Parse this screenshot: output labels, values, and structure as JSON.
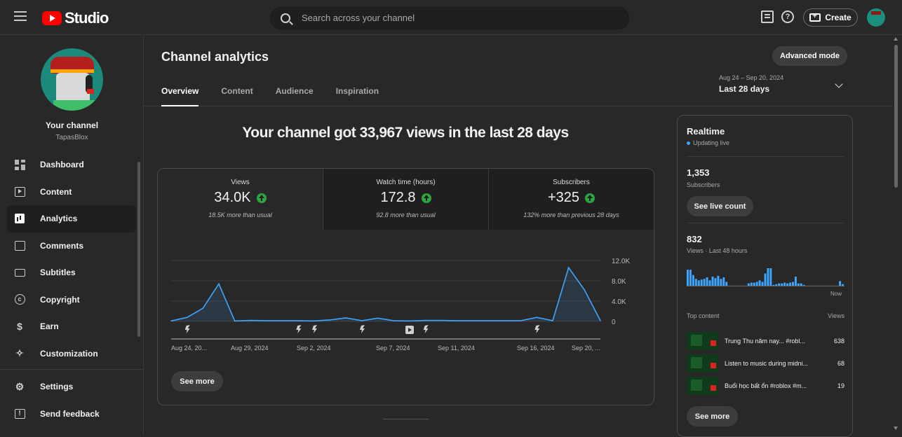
{
  "topbar": {
    "logo_text": "Studio",
    "search_placeholder": "Search across your channel",
    "create_label": "Create",
    "help_symbol": "?"
  },
  "sidebar": {
    "channel_title": "Your channel",
    "channel_handle": "TapasBlox",
    "items": [
      {
        "label": "Dashboard",
        "icon": "dashboard-icon"
      },
      {
        "label": "Content",
        "icon": "content-icon"
      },
      {
        "label": "Analytics",
        "icon": "analytics-icon",
        "active": true
      },
      {
        "label": "Comments",
        "icon": "comments-icon"
      },
      {
        "label": "Subtitles",
        "icon": "subtitles-icon"
      },
      {
        "label": "Copyright",
        "icon": "copyright-icon"
      },
      {
        "label": "Earn",
        "icon": "earn-icon"
      },
      {
        "label": "Customization",
        "icon": "customization-icon"
      }
    ],
    "bottom_items": [
      {
        "label": "Settings",
        "icon": "settings-icon"
      },
      {
        "label": "Send feedback",
        "icon": "feedback-icon"
      }
    ]
  },
  "header": {
    "title": "Channel analytics",
    "advanced_mode": "Advanced mode",
    "tabs": [
      "Overview",
      "Content",
      "Audience",
      "Inspiration"
    ],
    "date_range": "Aug 24 – Sep 20, 2024",
    "date_label": "Last 28 days"
  },
  "overview": {
    "headline": "Your channel got 33,967 views in the last 28 days",
    "metrics": [
      {
        "label": "Views",
        "value": "34.0K",
        "sub": "18.5K more than usual"
      },
      {
        "label": "Watch time (hours)",
        "value": "172.8",
        "sub": "92.8 more than usual"
      },
      {
        "label": "Subscribers",
        "value": "+325",
        "sub": "132% more than previous 28 days"
      }
    ],
    "see_more": "See more"
  },
  "chart_data": {
    "type": "area",
    "x_tick_labels": [
      "Aug 24, 20...",
      "Aug 29, 2024",
      "Sep 2, 2024",
      "Sep 7, 2024",
      "Sep 11, 2024",
      "Sep 16, 2024",
      "Sep 20, ..."
    ],
    "y_tick_labels": [
      "12.0K",
      "8.0K",
      "4.0K",
      "0"
    ],
    "ylim": [
      0,
      12000
    ],
    "values": [
      100,
      800,
      2600,
      7400,
      100,
      200,
      150,
      150,
      150,
      100,
      300,
      700,
      150,
      650,
      150,
      100,
      200,
      200,
      150,
      150,
      150,
      150,
      150,
      800,
      150,
      10600,
      6200,
      150
    ],
    "color": "#3ea6ff",
    "upload_markers": [
      {
        "index": 1,
        "kind": "short"
      },
      {
        "index": 8,
        "kind": "short"
      },
      {
        "index": 9,
        "kind": "short"
      },
      {
        "index": 12,
        "kind": "short"
      },
      {
        "index": 15,
        "kind": "video"
      },
      {
        "index": 16,
        "kind": "short"
      },
      {
        "index": 23,
        "kind": "short"
      }
    ]
  },
  "realtime": {
    "title": "Realtime",
    "status": "Updating live",
    "subscribers": "1,353",
    "subscribers_label": "Subscribers",
    "see_live_count": "See live count",
    "views": "832",
    "views_label": "Views · Last 48 hours",
    "now_label": "Now",
    "bars_color": "#3ea6ff",
    "bars": [
      22,
      22,
      15,
      10,
      8,
      9,
      10,
      12,
      8,
      13,
      11,
      14,
      10,
      12,
      6,
      1,
      1,
      1,
      1,
      1,
      1,
      1,
      4,
      5,
      5,
      6,
      8,
      6,
      17,
      24,
      24,
      2,
      3,
      4,
      4,
      5,
      4,
      5,
      6,
      13,
      4,
      4,
      2,
      1,
      1,
      1,
      1,
      1,
      1,
      1,
      1,
      1,
      1,
      1,
      1,
      7,
      3
    ],
    "top_content_label": "Top content",
    "views_col_label": "Views",
    "top_content": [
      {
        "title": "Trung Thu năm nay... #robl...",
        "views": "638"
      },
      {
        "title": "Listen to music during midni...",
        "views": "68"
      },
      {
        "title": "Buổi học bất ổn #roblox #m...",
        "views": "19"
      }
    ],
    "see_more": "See more"
  }
}
